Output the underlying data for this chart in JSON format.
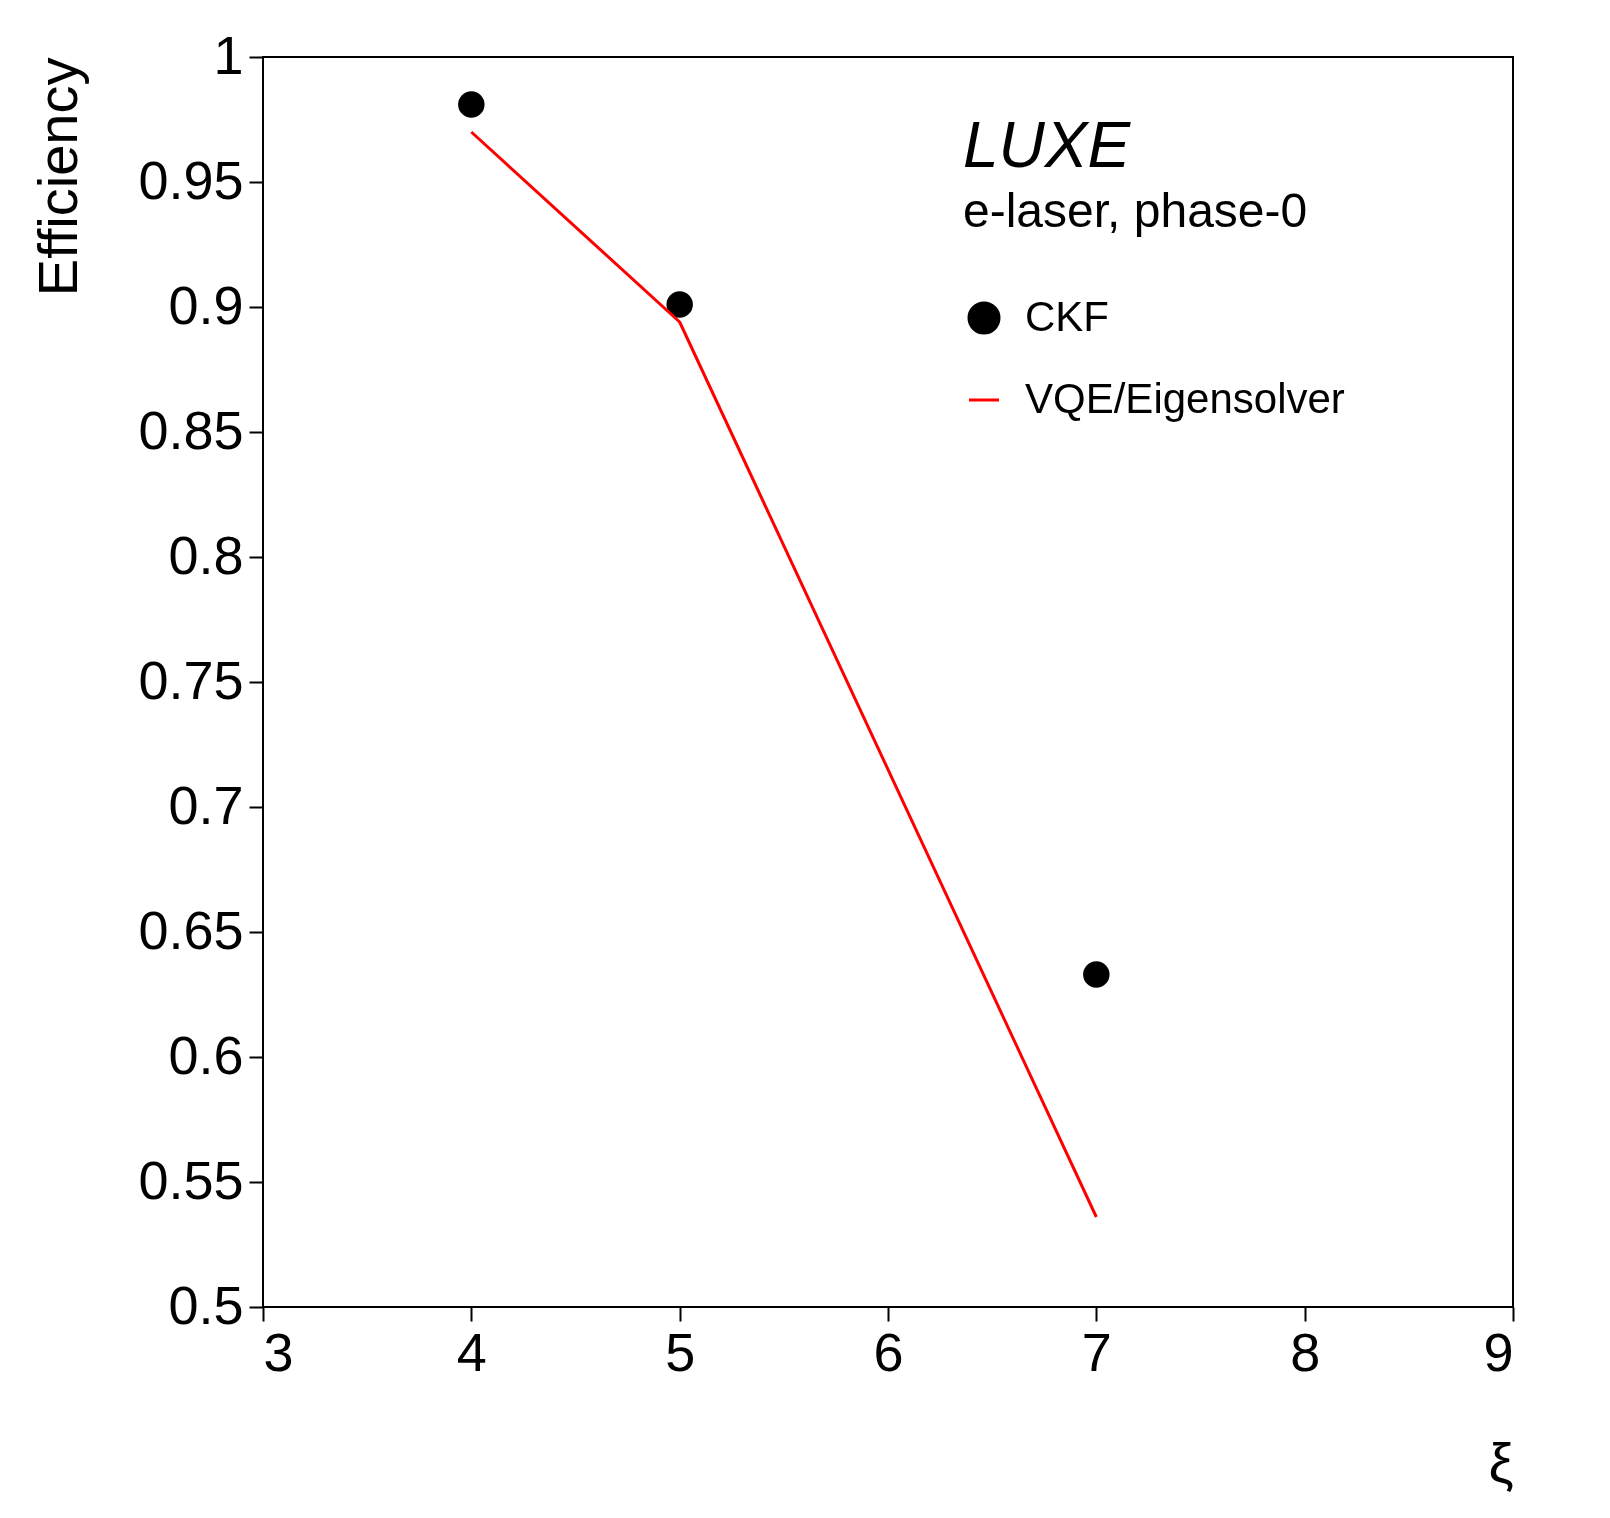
{
  "chart_data": {
    "type": "scatter",
    "xlabel": "ξ",
    "ylabel": "Efficiency",
    "annotations": [
      "LUXE",
      "e-laser, phase-0"
    ],
    "x": [
      4,
      5,
      7
    ],
    "series": [
      {
        "name": "CKF",
        "color": "#000000",
        "values": [
          0.981,
          0.901,
          0.633
        ]
      },
      {
        "name": "VQE/Eigensolver",
        "type": "line",
        "marker": "none",
        "color": "#ff0000",
        "values": [
          0.97,
          0.894,
          0.536
        ]
      }
    ],
    "xlim": [
      3,
      9
    ],
    "xticks": [
      3,
      4,
      5,
      6,
      7,
      8,
      9
    ],
    "ylim": [
      0.5,
      1
    ],
    "yticks": [
      0.5,
      0.55,
      0.6,
      0.65,
      0.7,
      0.75,
      0.8,
      0.85,
      0.9,
      0.95,
      1
    ],
    "grid": false,
    "legend": "top right",
    "marker": "circle"
  }
}
